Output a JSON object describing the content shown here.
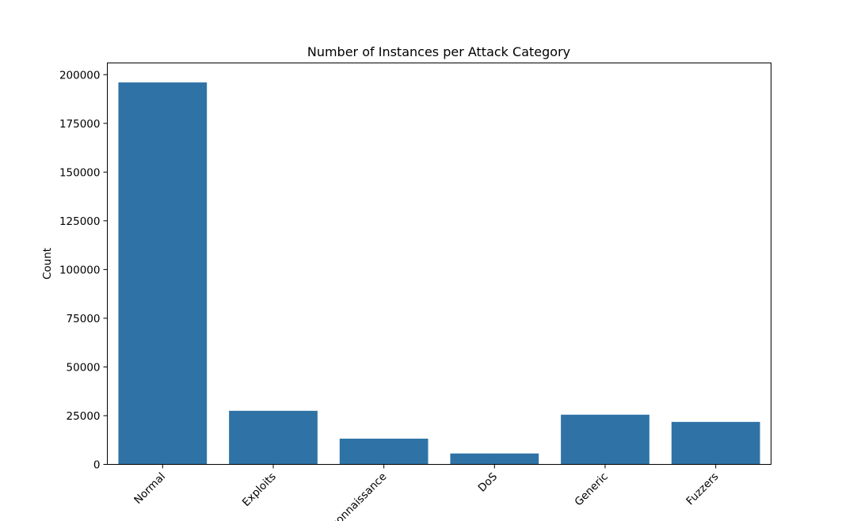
{
  "chart_data": {
    "type": "bar",
    "title": "Number of Instances per Attack Category",
    "xlabel": "",
    "ylabel": "Count",
    "categories": [
      "Normal",
      "Exploits",
      "Reconnaissance",
      "DoS",
      "Generic",
      "Fuzzers"
    ],
    "values": [
      196000,
      27500,
      13200,
      5600,
      25500,
      21800
    ],
    "ylim": [
      0,
      206000
    ],
    "yticks": [
      0,
      25000,
      50000,
      75000,
      100000,
      125000,
      150000,
      175000,
      200000
    ],
    "bar_color": "#2f73a6",
    "grid": false,
    "legend": "none",
    "xtick_rotation_degrees": 45
  }
}
